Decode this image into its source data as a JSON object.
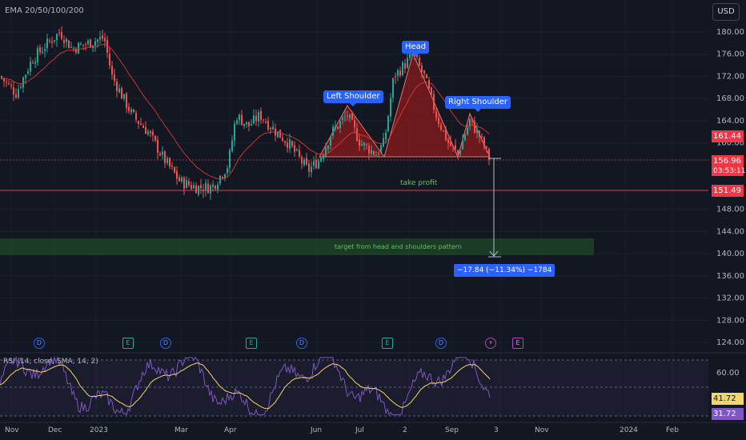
{
  "indicators": {
    "main_label": "EMA 20/50/100/200",
    "rsi_label": "RSI (14, close, SMA, 14, 2)"
  },
  "currency_button": "USD",
  "price_axis": {
    "ticks": [
      "180.00",
      "176.00",
      "172.00",
      "168.00",
      "164.00",
      "160.00",
      "148.00",
      "144.00",
      "140.00",
      "136.00",
      "132.00",
      "128.00",
      "124.00"
    ],
    "tags": {
      "upper": "161.44",
      "current": "156.96",
      "countdown": "03:53:11",
      "lower": "151.49"
    },
    "colors": {
      "upper": "#f23645",
      "current": "#f23645",
      "lower": "#f23645"
    }
  },
  "rsi_axis": {
    "tick": "60.00",
    "tags": {
      "sma": "41.72",
      "rsi": "31.72"
    }
  },
  "time_axis": [
    "Nov",
    "Dec",
    "2023",
    "Mar",
    "Apr",
    "Jun",
    "Jul",
    "2",
    "Sep",
    "3",
    "Nov",
    "2024",
    "Feb"
  ],
  "pattern_labels": {
    "left_shoulder": "Left Shoulder",
    "head": "Head",
    "right_shoulder": "Right Shoulder"
  },
  "drawings": {
    "take_profit": "take profit",
    "target_zone": "target from head and shoulders pattern",
    "measure": "−17.84 (−11.34%) −1784"
  },
  "events": [
    {
      "type": "dividend",
      "glyph": "D"
    },
    {
      "type": "earnings",
      "glyph": "E"
    },
    {
      "type": "dividend",
      "glyph": "D"
    },
    {
      "type": "earnings",
      "glyph": "E"
    },
    {
      "type": "dividend",
      "glyph": "D"
    },
    {
      "type": "earnings",
      "glyph": "E"
    },
    {
      "type": "dividend",
      "glyph": "D"
    },
    {
      "type": "split",
      "glyph": "⚡"
    },
    {
      "type": "earnings-upcoming",
      "glyph": "E"
    }
  ],
  "colors": {
    "background": "#131722",
    "up": "#26a69a",
    "down": "#ef5350",
    "ema": "#e53935",
    "rsi": "#7e57c2",
    "rsi_sma": "#f2d56b",
    "accent": "#2962ff"
  }
}
